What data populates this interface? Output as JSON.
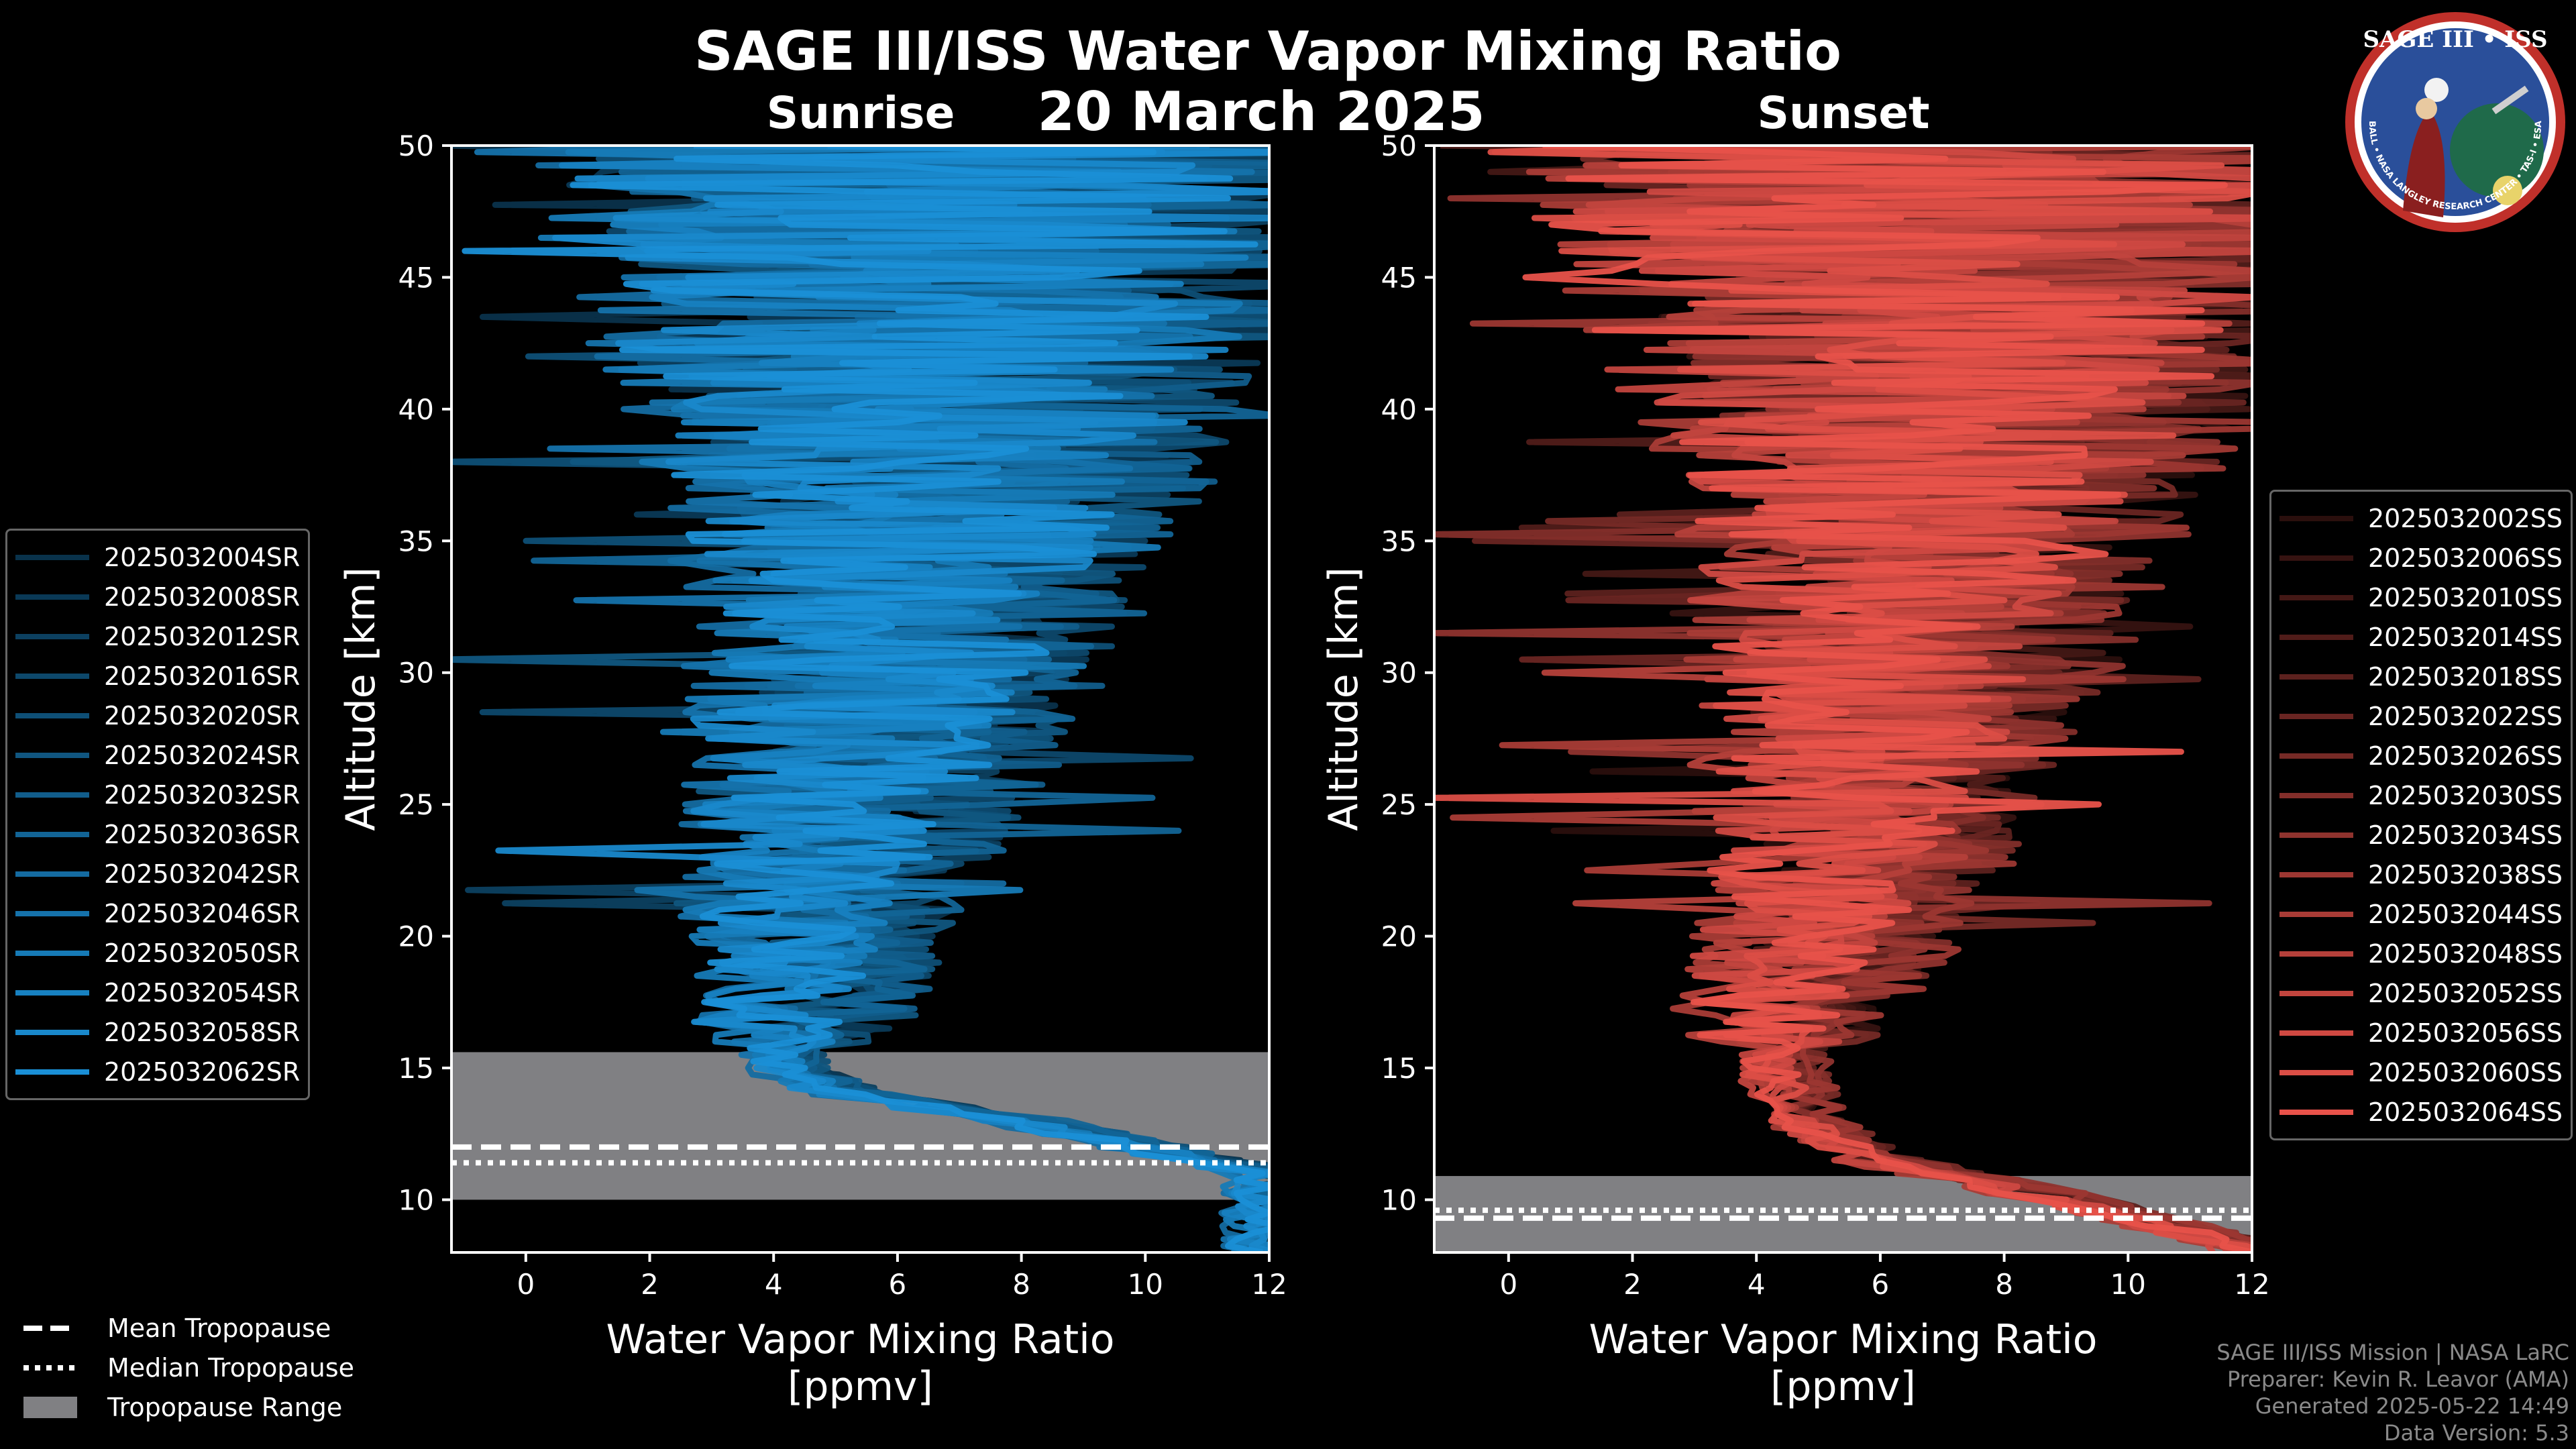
{
  "header": {
    "title": "SAGE III/ISS Water Vapor Mixing Ratio",
    "date": "20 March 2025"
  },
  "logo": {
    "line1": "SAGE III • ISS",
    "ring_text": "BALL • NASA LANGLEY RESEARCH CENTER • TAS-I • ESA"
  },
  "legend_sunrise": [
    "2025032004SR",
    "2025032008SR",
    "2025032012SR",
    "2025032016SR",
    "2025032020SR",
    "2025032024SR",
    "2025032032SR",
    "2025032036SR",
    "2025032042SR",
    "2025032046SR",
    "2025032050SR",
    "2025032054SR",
    "2025032058SR",
    "2025032062SR"
  ],
  "legend_sunset": [
    "2025032002SS",
    "2025032006SS",
    "2025032010SS",
    "2025032014SS",
    "2025032018SS",
    "2025032022SS",
    "2025032026SS",
    "2025032030SS",
    "2025032034SS",
    "2025032038SS",
    "2025032044SS",
    "2025032048SS",
    "2025032052SS",
    "2025032056SS",
    "2025032060SS",
    "2025032064SS"
  ],
  "tropopause_legend": {
    "mean": "Mean Tropopause",
    "median": "Median Tropopause",
    "range": "Tropopause Range"
  },
  "credits": {
    "line1": "SAGE III/ISS Mission | NASA LaRC",
    "line2": "Preparer: Kevin R. Leavor (AMA)",
    "line3": "Generated 2025-05-22 14:49",
    "line4": "Data Version: 5.3"
  },
  "colors": {
    "sunrise": "#1a8fd6",
    "sunset": "#e8524a",
    "range": "#808083",
    "background": "#000000"
  },
  "chart_data": [
    {
      "type": "line",
      "title": "Sunrise",
      "xlabel": "Water Vapor Mixing Ratio\n[ppmv]",
      "ylabel": "Altitude [km]",
      "xlim": [
        -1.2,
        12
      ],
      "ylim": [
        8,
        50
      ],
      "xticks": [
        0,
        2,
        4,
        6,
        8,
        10,
        12
      ],
      "yticks": [
        10,
        15,
        20,
        25,
        30,
        35,
        40,
        45,
        50
      ],
      "tropopause": {
        "mean": 12.0,
        "median": 11.4,
        "range": [
          10.0,
          15.6
        ]
      },
      "mean_profile": [
        {
          "alt": 8.3,
          "v": 12
        },
        {
          "alt": 11,
          "v": 12
        },
        {
          "alt": 13,
          "v": 8
        },
        {
          "alt": 14,
          "v": 5.2
        },
        {
          "alt": 15,
          "v": 4.2
        },
        {
          "alt": 16,
          "v": 4.3
        },
        {
          "alt": 18,
          "v": 4.6
        },
        {
          "alt": 20,
          "v": 4.8
        },
        {
          "alt": 22,
          "v": 5.0
        },
        {
          "alt": 25,
          "v": 5.4
        },
        {
          "alt": 28,
          "v": 5.8
        },
        {
          "alt": 31,
          "v": 6.1
        },
        {
          "alt": 34,
          "v": 6.4
        },
        {
          "alt": 37,
          "v": 6.6
        },
        {
          "alt": 40,
          "v": 6.8
        },
        {
          "alt": 43,
          "v": 6.9
        },
        {
          "alt": 46,
          "v": 7.0
        },
        {
          "alt": 50,
          "v": 7.0
        }
      ]
    },
    {
      "type": "line",
      "title": "Sunset",
      "xlabel": "Water Vapor Mixing Ratio\n[ppmv]",
      "ylabel": "Altitude [km]",
      "xlim": [
        -1.2,
        12
      ],
      "ylim": [
        8,
        50
      ],
      "xticks": [
        0,
        2,
        4,
        6,
        8,
        10,
        12
      ],
      "yticks": [
        10,
        15,
        20,
        25,
        30,
        35,
        40,
        45,
        50
      ],
      "tropopause": {
        "mean": 9.3,
        "median": 9.6,
        "range": [
          8.0,
          10.9
        ]
      },
      "mean_profile": [
        {
          "alt": 8.2,
          "v": 12
        },
        {
          "alt": 10,
          "v": 9
        },
        {
          "alt": 11.5,
          "v": 6
        },
        {
          "alt": 13,
          "v": 4.8
        },
        {
          "alt": 15,
          "v": 4.4
        },
        {
          "alt": 17,
          "v": 4.6
        },
        {
          "alt": 19,
          "v": 5.0
        },
        {
          "alt": 22,
          "v": 5.4
        },
        {
          "alt": 25,
          "v": 5.8
        },
        {
          "alt": 28,
          "v": 6.2
        },
        {
          "alt": 31,
          "v": 6.5
        },
        {
          "alt": 34,
          "v": 6.8
        },
        {
          "alt": 37,
          "v": 7.0
        },
        {
          "alt": 40,
          "v": 7.1
        },
        {
          "alt": 44,
          "v": 7.2
        },
        {
          "alt": 50,
          "v": 7.2
        }
      ]
    }
  ]
}
